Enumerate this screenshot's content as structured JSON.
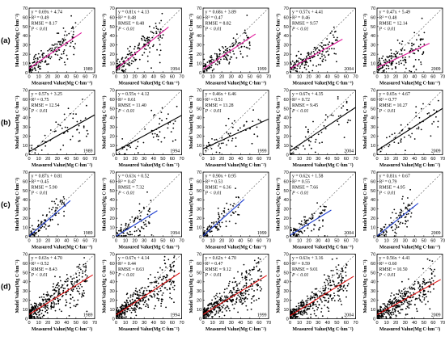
{
  "chart_data": [
    {
      "type": "scatter",
      "row": "(a)",
      "year": "1989",
      "fit_color": "#e0189a",
      "ylabel": "Model Value(Mg C·hm⁻²)",
      "xlabel": "Measured Value(Mg C·hm⁻²)",
      "slope": 0.69,
      "intercept": 4.74,
      "eq": "y = 0.69x + 4.74",
      "r2": "R² = 0.49",
      "rmse": "RMSE = 8.17",
      "p": "P < 0.01",
      "xlim": [
        0,
        70
      ],
      "ylim": [
        0,
        70
      ],
      "ticks": [
        0,
        10,
        20,
        30,
        40,
        50,
        60,
        70
      ]
    },
    {
      "type": "scatter",
      "row": "(a)",
      "year": "1994",
      "fit_color": "#e0189a",
      "ylabel": "Model Value(Mg C·hm⁻²)",
      "xlabel": "Measured Value(Mg C·hm⁻²)",
      "slope": 0.81,
      "intercept": 4.13,
      "eq": "y = 0.81x + 4.13",
      "r2": "R² = 0.48",
      "rmse": "RMSE = 8.48",
      "p": "P < 0.01",
      "xlim": [
        0,
        70
      ],
      "ylim": [
        0,
        70
      ],
      "ticks": [
        0,
        10,
        20,
        30,
        40,
        50,
        60,
        70
      ]
    },
    {
      "type": "scatter",
      "row": "(a)",
      "year": "1999",
      "fit_color": "#e0189a",
      "ylabel": "Model Value(Mg C·hm⁻²)",
      "xlabel": "Measured Value(Mg C·hm⁻²)",
      "slope": 0.68,
      "intercept": 3.89,
      "eq": "y = 0.68x + 3.89",
      "r2": "R² = 0.47",
      "rmse": "RMSE = 8.82",
      "p": "P < 0.01",
      "xlim": [
        0,
        70
      ],
      "ylim": [
        0,
        70
      ],
      "ticks": [
        0,
        10,
        20,
        30,
        40,
        50,
        60,
        70
      ]
    },
    {
      "type": "scatter",
      "row": "(a)",
      "year": "2004",
      "fit_color": "#e0189a",
      "ylabel": "Model Value(Mg C·hm⁻²)",
      "xlabel": "Measured Value(Mg C·hm⁻²)",
      "slope": 0.57,
      "intercept": 4.41,
      "eq": "y = 0.57x + 4.41",
      "r2": "R² = 0.46",
      "rmse": "RMSE = 9.57",
      "p": "P < 0.01",
      "xlim": [
        0,
        70
      ],
      "ylim": [
        0,
        70
      ],
      "ticks": [
        0,
        10,
        20,
        30,
        40,
        50,
        60,
        70
      ]
    },
    {
      "type": "scatter",
      "row": "(a)",
      "year": "2009",
      "fit_color": "#e0189a",
      "ylabel": "Model Value(Mg C·hm⁻²)",
      "xlabel": "Measured Value(Mg C·hm⁻²)",
      "slope": 0.47,
      "intercept": 5.49,
      "eq": "y = 0.47x + 5.49",
      "r2": "R² = 0.48",
      "rmse": "RMSE = 12.14",
      "p": "P < 0.01",
      "xlim": [
        0,
        70
      ],
      "ylim": [
        0,
        70
      ],
      "ticks": [
        0,
        10,
        20,
        30,
        40,
        50,
        60,
        70
      ]
    },
    {
      "type": "scatter",
      "row": "(b)",
      "year": "1989",
      "fit_color": "#000000",
      "ylabel": "Model Value(Mg C·hm⁻²)",
      "xlabel": "Measured Value(Mg C·hm⁻²)",
      "slope": 0.57,
      "intercept": 3.25,
      "eq": "y = 0.57x + 3.25",
      "r2": "R² = 0.75",
      "rmse": "RMSE = 12.54",
      "p": "P < 0.01",
      "xlim": [
        0,
        70
      ],
      "ylim": [
        0,
        70
      ],
      "ticks": [
        0,
        10,
        20,
        30,
        40,
        50,
        60,
        70
      ]
    },
    {
      "type": "scatter",
      "row": "(b)",
      "year": "1994",
      "fit_color": "#000000",
      "ylabel": "Model Value(Mg C·hm⁻²)",
      "xlabel": "Measured Value(Mg C·hm⁻²)",
      "slope": 0.55,
      "intercept": 4.12,
      "eq": "y = 0.55x + 4.12",
      "r2": "R² = 0.61",
      "rmse": "RMSE = 11.40",
      "p": "P < 0.01",
      "xlim": [
        0,
        70
      ],
      "ylim": [
        0,
        70
      ],
      "ticks": [
        0,
        10,
        20,
        30,
        40,
        50,
        60,
        70
      ]
    },
    {
      "type": "scatter",
      "row": "(b)",
      "year": "1999",
      "fit_color": "#000000",
      "ylabel": "Model Value(Mg C·hm⁻²)",
      "xlabel": "Measured Value(Mg C·hm⁻²)",
      "slope": 0.46,
      "intercept": 6.46,
      "eq": "y = 0.46x + 6.46",
      "r2": "R² = 0.51",
      "rmse": "RMSE = 13.28",
      "p": "P < 0.01",
      "xlim": [
        0,
        70
      ],
      "ylim": [
        0,
        70
      ],
      "ticks": [
        0,
        10,
        20,
        30,
        40,
        50,
        60,
        70
      ]
    },
    {
      "type": "scatter",
      "row": "(b)",
      "year": "2004",
      "fit_color": "#000000",
      "ylabel": "Model Value(Mg C·hm⁻²)",
      "xlabel": "Measured Value(Mg C·hm⁻²)",
      "slope": 0.67,
      "intercept": 4.35,
      "eq": "y = 0.67x + 4.35",
      "r2": "R² = 0.72",
      "rmse": "RMSE = 9.45",
      "p": "P < 0.01",
      "xlim": [
        0,
        70
      ],
      "ylim": [
        0,
        70
      ],
      "ticks": [
        0,
        10,
        20,
        30,
        40,
        50,
        60,
        70
      ]
    },
    {
      "type": "scatter",
      "row": "(b)",
      "year": "2009",
      "fit_color": "#000000",
      "ylabel": "Model Value(Mg C·hm⁻²)",
      "xlabel": "Measured Value(Mg C·hm⁻²)",
      "slope": 0.65,
      "intercept": 4.67,
      "eq": "y = 0.65x + 4.67",
      "r2": "R² = 0.77",
      "rmse": "RMSE = 10.27",
      "p": "P < 0.01",
      "xlim": [
        0,
        70
      ],
      "ylim": [
        0,
        70
      ],
      "ticks": [
        0,
        10,
        20,
        30,
        40,
        50,
        60,
        70
      ]
    },
    {
      "type": "scatter",
      "row": "(c)",
      "year": "1989",
      "fit_color": "#1f3fd0",
      "ylabel": "Model Value(Mg C·hm⁻²)",
      "xlabel": "Measured Value(Mg C·hm⁻²)",
      "slope": 0.87,
      "intercept": 0.81,
      "eq": "y = 0.87x + 0.81",
      "r2": "R² = 0.45",
      "rmse": "RMSE = 5.90",
      "p": "P < 0.01",
      "xlim": [
        0,
        70
      ],
      "ylim": [
        0,
        70
      ],
      "ticks": [
        0,
        10,
        20,
        30,
        40,
        50,
        60,
        70
      ]
    },
    {
      "type": "scatter",
      "row": "(c)",
      "year": "1994",
      "fit_color": "#1f3fd0",
      "ylabel": "Model Value(Mg C·hm⁻²)",
      "xlabel": "Measured Value(Mg C·hm⁻²)",
      "slope": 0.63,
      "intercept": 0.52,
      "eq": "y = 0.63x + 0.52",
      "r2": "R² = 0.47",
      "rmse": "RMSE = 7.32",
      "p": "P < 0.01",
      "xlim": [
        0,
        70
      ],
      "ylim": [
        0,
        70
      ],
      "ticks": [
        0,
        10,
        20,
        30,
        40,
        50,
        60,
        70
      ]
    },
    {
      "type": "scatter",
      "row": "(c)",
      "year": "1999",
      "fit_color": "#1f3fd0",
      "ylabel": "Model Value(Mg C·hm⁻²)",
      "xlabel": "Measured Value(Mg C·hm⁻²)",
      "slope": 0.9,
      "intercept": 0.95,
      "eq": "y = 0.90x + 0.95",
      "r2": "R² = 0.53",
      "rmse": "RMSE = 6.36",
      "p": "P < 0.01",
      "xlim": [
        0,
        70
      ],
      "ylim": [
        0,
        70
      ],
      "ticks": [
        0,
        10,
        20,
        30,
        40,
        50,
        60,
        70
      ]
    },
    {
      "type": "scatter",
      "row": "(c)",
      "year": "2004",
      "fit_color": "#1f3fd0",
      "ylabel": "Model Value(Mg C·hm⁻²)",
      "xlabel": "Measured Value(Mg C·hm⁻²)",
      "slope": 0.62,
      "intercept": 1.58,
      "eq": "y = 0.62x + 1.58",
      "r2": "R² = 0.55",
      "rmse": "RMSE = 7.66",
      "p": "P < 0.01",
      "xlim": [
        0,
        70
      ],
      "ylim": [
        0,
        70
      ],
      "ticks": [
        0,
        10,
        20,
        30,
        40,
        50,
        60,
        70
      ]
    },
    {
      "type": "scatter",
      "row": "(c)",
      "year": "2009",
      "fit_color": "#1f3fd0",
      "ylabel": "Model Value(Mg C·hm⁻²)",
      "xlabel": "Measured Value(Mg C·hm⁻²)",
      "slope": 0.81,
      "intercept": 0.67,
      "eq": "y = 0.81x + 0.67",
      "r2": "R² = 0.79",
      "rmse": "RMSE = 4.95",
      "p": "P < 0.01",
      "xlim": [
        0,
        70
      ],
      "ylim": [
        0,
        70
      ],
      "ticks": [
        0,
        10,
        20,
        30,
        40,
        50,
        60,
        70
      ]
    },
    {
      "type": "scatter",
      "row": "(d)",
      "year": "1989",
      "fit_color": "#e01010",
      "ylabel": "Model Value(Mg C·hm⁻²)",
      "xlabel": "Measured Value(Mg C·hm⁻²)",
      "slope": 0.63,
      "intercept": 4.7,
      "eq": "y = 0.63x + 4.70",
      "r2": "R² = 0.52",
      "rmse": "RMSE = 8.43",
      "p": "P < 0.01",
      "xlim": [
        0,
        70
      ],
      "ylim": [
        0,
        70
      ],
      "ticks": [
        0,
        10,
        20,
        30,
        40,
        50,
        60,
        70
      ]
    },
    {
      "type": "scatter",
      "row": "(d)",
      "year": "1994",
      "fit_color": "#e01010",
      "ylabel": "Model Value(Mg C·hm⁻²)",
      "xlabel": "Measured Value(Mg C·hm⁻²)",
      "slope": 0.67,
      "intercept": 4.14,
      "eq": "y = 0.67x + 4.14",
      "r2": "R² = 0.44",
      "rmse": "RMSE = 8.63",
      "p": "P < 0.01",
      "xlim": [
        0,
        70
      ],
      "ylim": [
        0,
        70
      ],
      "ticks": [
        0,
        10,
        20,
        30,
        40,
        50,
        60,
        70
      ]
    },
    {
      "type": "scatter",
      "row": "(d)",
      "year": "1999",
      "fit_color": "#e01010",
      "ylabel": "Model Value(Mg C·hm⁻²)",
      "xlabel": "Measured Value(Mg C·hm⁻²)",
      "slope": 0.62,
      "intercept": 4.7,
      "eq": "y = 0.62x + 4.70",
      "r2": "R² = 0.47",
      "rmse": "RMSE = 9.12",
      "p": "P < 0.01",
      "xlim": [
        0,
        70
      ],
      "ylim": [
        0,
        70
      ],
      "ticks": [
        0,
        10,
        20,
        30,
        40,
        50,
        60,
        70
      ]
    },
    {
      "type": "scatter",
      "row": "(d)",
      "year": "2004",
      "fit_color": "#e01010",
      "ylabel": "Model Value(Mg C·hm⁻²)",
      "xlabel": "Measured Value(Mg C·hm⁻²)",
      "slope": 0.63,
      "intercept": 3.16,
      "eq": "y = 0.63x + 3.16",
      "r2": "R² = 0.59",
      "rmse": "RMSE = 9.01",
      "p": "P < 0.01",
      "xlim": [
        0,
        70
      ],
      "ylim": [
        0,
        70
      ],
      "ticks": [
        0,
        10,
        20,
        30,
        40,
        50,
        60,
        70
      ]
    },
    {
      "type": "scatter",
      "row": "(d)",
      "year": "2009",
      "fit_color": "#e01010",
      "ylabel": "Model Value(Mg C·hm⁻²)",
      "xlabel": "Measured Value(Mg C·hm⁻²)",
      "slope": 0.56,
      "intercept": 4.41,
      "eq": "y = 0.56x + 4.41",
      "r2": "R² = 0.60",
      "rmse": "RMSE = 10.50",
      "p": "P < 0.01",
      "xlim": [
        0,
        70
      ],
      "ylim": [
        0,
        70
      ],
      "ticks": [
        0,
        10,
        20,
        30,
        40,
        50,
        60,
        70
      ]
    }
  ]
}
